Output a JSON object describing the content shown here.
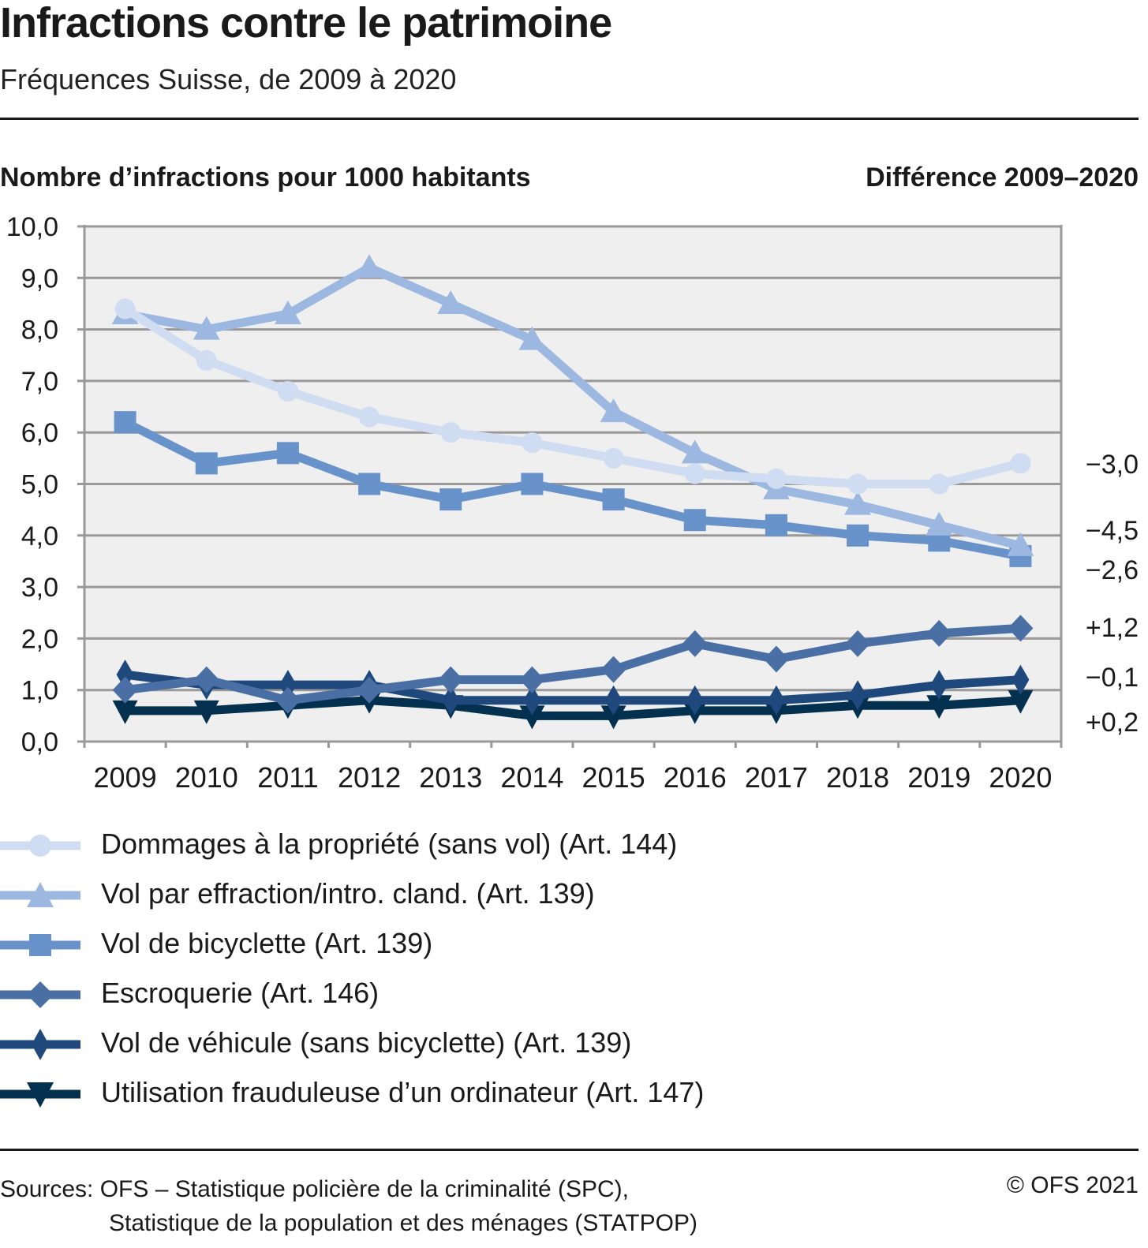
{
  "header": {
    "title": "Infractions contre le patrimoine",
    "subtitle": "Fréquences Suisse, de 2009 à 2020"
  },
  "chart_data": {
    "type": "line",
    "title": "Infractions contre le patrimoine",
    "subtitle": "Fréquences Suisse, de 2009 à 2020",
    "ylabel": "Nombre d’infractions pour 1000 habitants",
    "right_label": "Différence 2009–2020",
    "xlabel": "",
    "x": [
      "2009",
      "2010",
      "2011",
      "2012",
      "2013",
      "2014",
      "2015",
      "2016",
      "2017",
      "2018",
      "2019",
      "2020"
    ],
    "ylim": [
      0,
      10
    ],
    "yticks": [
      "0,0",
      "1,0",
      "2,0",
      "3,0",
      "4,0",
      "5,0",
      "6,0",
      "7,0",
      "8,0",
      "9,0",
      "10,0"
    ],
    "grid": true,
    "legend_position": "bottom",
    "series": [
      {
        "name": "Dommages à la propriété (sans vol) (Art. 144)",
        "marker": "circle",
        "color": "#cfdcf1",
        "values": [
          8.4,
          7.4,
          6.8,
          6.3,
          6.0,
          5.8,
          5.5,
          5.2,
          5.1,
          5.0,
          5.0,
          5.4
        ],
        "difference": "−3,0"
      },
      {
        "name": "Vol par effraction/intro. cland. (Art. 139)",
        "marker": "triangle-up",
        "color": "#9cb8e0",
        "values": [
          8.3,
          8.0,
          8.3,
          9.2,
          8.5,
          7.8,
          6.4,
          5.6,
          4.9,
          4.6,
          4.2,
          3.8
        ],
        "difference": "−4,5"
      },
      {
        "name": "Vol de bicyclette (Art. 139)",
        "marker": "square",
        "color": "#6892ca",
        "values": [
          6.2,
          5.4,
          5.6,
          5.0,
          4.7,
          5.0,
          4.7,
          4.3,
          4.2,
          4.0,
          3.9,
          3.6
        ],
        "difference": "−2,6"
      },
      {
        "name": "Escroquerie (Art. 146)",
        "marker": "diamond",
        "color": "#4a6fa5",
        "values": [
          1.0,
          1.2,
          0.8,
          1.0,
          1.2,
          1.2,
          1.4,
          1.9,
          1.6,
          1.9,
          2.1,
          2.2
        ],
        "difference": "+1,2"
      },
      {
        "name": "Vol de véhicule (sans bicyclette) (Art. 139)",
        "marker": "diamond-tall",
        "color": "#1f497d",
        "values": [
          1.3,
          1.1,
          1.1,
          1.1,
          0.8,
          0.8,
          0.8,
          0.8,
          0.8,
          0.9,
          1.1,
          1.2
        ],
        "difference": "−0,1"
      },
      {
        "name": "Utilisation frauduleuse d’un ordinateur (Art. 147)",
        "marker": "triangle-down",
        "color": "#03304f",
        "values": [
          0.6,
          0.6,
          0.7,
          0.8,
          0.7,
          0.5,
          0.5,
          0.6,
          0.6,
          0.7,
          0.7,
          0.8
        ],
        "difference": "+0,2"
      }
    ],
    "plot_background": "#efefef",
    "grid_color": "#999999"
  },
  "footer": {
    "source_line1": "Sources: OFS – Statistique policière de la criminalité (SPC),",
    "source_line2": "Statistique de la population et des ménages (STATPOP)",
    "copyright": "© OFS 2021"
  }
}
